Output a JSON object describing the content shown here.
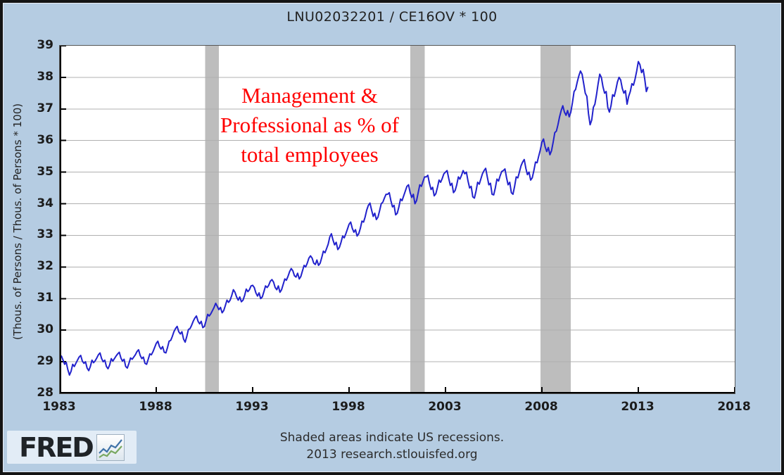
{
  "header": {
    "title": "LNU02032201 / CE16OV * 100"
  },
  "chart_data": {
    "type": "line",
    "title": "LNU02032201 / CE16OV * 100",
    "xlabel": "",
    "ylabel": "(Thous. of Persons / Thous. of Persons * 100)",
    "xlim": [
      1983,
      2018
    ],
    "ylim": [
      28,
      39
    ],
    "x_ticks": [
      1983,
      1988,
      1993,
      1998,
      2003,
      2008,
      2013,
      2018
    ],
    "y_ticks": [
      28,
      29,
      30,
      31,
      32,
      33,
      34,
      35,
      36,
      37,
      38,
      39
    ],
    "grid": "horizontal-only",
    "line_color": "#2222cc",
    "grid_color": "#b0b0b0",
    "recession_band_color": "#bdbdbd",
    "recessions_years": [
      [
        1990.54,
        1991.25
      ],
      [
        2001.17,
        2001.92
      ],
      [
        2007.92,
        2009.5
      ]
    ],
    "x_start": 1983.0,
    "x_step_months": 1,
    "frequency": "monthly",
    "values": [
      29.1,
      29.18,
      29.05,
      28.92,
      28.98,
      28.75,
      28.58,
      28.7,
      28.92,
      28.85,
      28.95,
      29.05,
      29.15,
      29.2,
      29.02,
      28.95,
      29.0,
      28.8,
      28.72,
      28.85,
      29.05,
      28.97,
      29.03,
      29.12,
      29.22,
      29.28,
      29.1,
      29.0,
      29.05,
      28.85,
      28.78,
      28.9,
      29.1,
      29.02,
      29.1,
      29.18,
      29.25,
      29.3,
      29.12,
      29.02,
      29.08,
      28.85,
      28.8,
      28.95,
      29.12,
      29.08,
      29.15,
      29.22,
      29.32,
      29.38,
      29.2,
      29.1,
      29.15,
      28.95,
      28.92,
      29.08,
      29.25,
      29.22,
      29.32,
      29.45,
      29.58,
      29.65,
      29.48,
      29.4,
      29.48,
      29.3,
      29.28,
      29.45,
      29.65,
      29.68,
      29.8,
      29.95,
      30.05,
      30.12,
      29.95,
      29.88,
      29.95,
      29.72,
      29.62,
      29.8,
      30.02,
      30.05,
      30.15,
      30.28,
      30.38,
      30.45,
      30.28,
      30.2,
      30.28,
      30.08,
      30.12,
      30.3,
      30.5,
      30.45,
      30.52,
      30.62,
      30.72,
      30.85,
      30.75,
      30.65,
      30.72,
      30.55,
      30.62,
      30.78,
      30.95,
      30.88,
      30.95,
      31.1,
      31.28,
      31.2,
      31.05,
      30.95,
      31.05,
      30.9,
      30.95,
      31.1,
      31.3,
      31.22,
      31.28,
      31.4,
      31.42,
      31.35,
      31.18,
      31.08,
      31.18,
      31.0,
      31.05,
      31.22,
      31.4,
      31.35,
      31.42,
      31.55,
      31.6,
      31.52,
      31.35,
      31.28,
      31.4,
      31.2,
      31.28,
      31.45,
      31.62,
      31.58,
      31.7,
      31.85,
      31.95,
      31.88,
      31.72,
      31.68,
      31.8,
      31.62,
      31.7,
      31.88,
      32.05,
      32.0,
      32.12,
      32.28,
      32.35,
      32.28,
      32.12,
      32.08,
      32.22,
      32.05,
      32.12,
      32.3,
      32.5,
      32.45,
      32.58,
      32.72,
      32.95,
      33.05,
      32.85,
      32.7,
      32.78,
      32.55,
      32.62,
      32.78,
      32.98,
      32.92,
      33.05,
      33.2,
      33.35,
      33.42,
      33.22,
      33.1,
      33.18,
      32.98,
      33.05,
      33.22,
      33.45,
      33.42,
      33.58,
      33.8,
      33.95,
      34.02,
      33.8,
      33.6,
      33.7,
      33.5,
      33.58,
      33.78,
      34.0,
      34.05,
      34.18,
      34.3,
      34.3,
      34.35,
      34.1,
      33.9,
      33.95,
      33.65,
      33.7,
      33.9,
      34.15,
      34.1,
      34.25,
      34.4,
      34.55,
      34.6,
      34.35,
      34.2,
      34.3,
      34.0,
      34.1,
      34.35,
      34.6,
      34.55,
      34.7,
      34.85,
      34.85,
      34.9,
      34.65,
      34.45,
      34.52,
      34.25,
      34.32,
      34.52,
      34.75,
      34.68,
      34.8,
      34.95,
      35.0,
      35.05,
      34.8,
      34.58,
      34.65,
      34.35,
      34.42,
      34.6,
      34.85,
      34.78,
      34.9,
      35.05,
      34.95,
      35.0,
      34.72,
      34.5,
      34.55,
      34.22,
      34.18,
      34.4,
      34.68,
      34.62,
      34.78,
      34.95,
      35.05,
      35.12,
      34.85,
      34.6,
      34.65,
      34.3,
      34.28,
      34.5,
      34.78,
      34.72,
      34.88,
      35.02,
      35.05,
      35.1,
      34.82,
      34.6,
      34.68,
      34.35,
      34.3,
      34.55,
      34.85,
      34.82,
      35.0,
      35.2,
      35.32,
      35.4,
      35.12,
      34.92,
      35.0,
      34.75,
      34.82,
      35.05,
      35.32,
      35.3,
      35.5,
      35.7,
      35.95,
      36.05,
      35.8,
      35.65,
      35.78,
      35.55,
      35.68,
      35.95,
      36.25,
      36.3,
      36.5,
      36.75,
      36.95,
      37.1,
      36.9,
      36.8,
      36.95,
      36.75,
      36.9,
      37.2,
      37.55,
      37.62,
      37.85,
      38.05,
      38.2,
      38.1,
      37.8,
      37.5,
      37.4,
      36.85,
      36.5,
      36.65,
      37.05,
      37.15,
      37.45,
      37.8,
      38.1,
      38.0,
      37.7,
      37.5,
      37.55,
      37.05,
      36.9,
      37.1,
      37.45,
      37.4,
      37.6,
      37.85,
      38.0,
      37.92,
      37.65,
      37.5,
      37.58,
      37.15,
      37.4,
      37.55,
      37.8,
      37.75,
      37.95,
      38.2,
      38.5,
      38.4,
      38.15,
      38.25,
      37.95,
      37.55,
      37.7
    ],
    "annotation": {
      "lines": [
        "Management &",
        "Professional as % of",
        "total employees"
      ],
      "color": "#ff0000"
    },
    "legend_position": "none"
  },
  "footer": {
    "note1": "Shaded areas indicate US recessions.",
    "note2": "2013 research.stlouisfed.org"
  },
  "logo": {
    "text": "FRED",
    "icon": "line-chart-icon"
  }
}
